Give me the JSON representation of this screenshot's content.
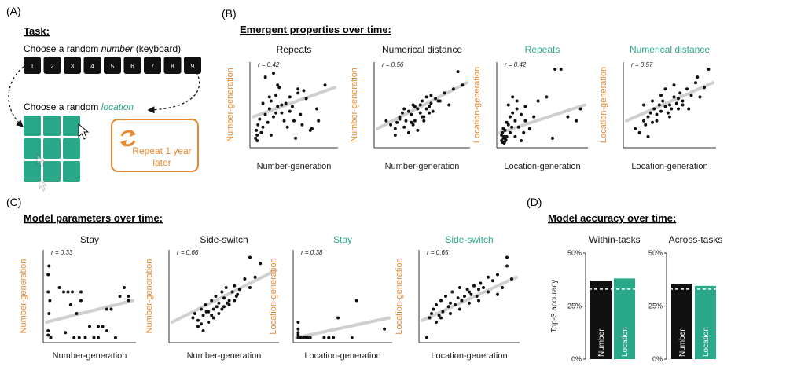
{
  "panels": {
    "a": "(A)",
    "b": "(B)",
    "c": "(C)",
    "d": "(D)"
  },
  "colors": {
    "orange": "#e8882e",
    "teal": "#2aa88a",
    "black": "#111111",
    "fit": "#cfcfcf"
  },
  "task": {
    "heading": "Task:",
    "number_prefix": "Choose a random ",
    "number_word": "number",
    "number_suffix": " (keyboard)",
    "keys": [
      "1",
      "2",
      "3",
      "4",
      "5",
      "6",
      "7",
      "8",
      "9"
    ],
    "location_prefix": "Choose a random ",
    "location_word": "location",
    "repeat_line1": "Repeat 1 year",
    "repeat_line2": "later",
    "repeat_icon": "cycle-arrows-icon"
  },
  "headings": {
    "b": "Emergent properties over time:",
    "c": "Model parameters over time:",
    "d": "Model accuracy over time:"
  },
  "chart_data": [
    {
      "id": "b1",
      "type": "scatter",
      "title": "Repeats",
      "title_color": "black",
      "xlabel": "Number-generation",
      "ylabel": "Number-generation",
      "ylabel_color": "orange",
      "r_label": "r = 0.42",
      "x": [
        0.03,
        0.05,
        0.04,
        0.06,
        0.08,
        0.1,
        0.05,
        0.12,
        0.15,
        0.18,
        0.2,
        0.22,
        0.25,
        0.28,
        0.3,
        0.32,
        0.35,
        0.4,
        0.45,
        0.5,
        0.55,
        0.6,
        0.15,
        0.25,
        0.35,
        0.45,
        0.55,
        0.65,
        0.7,
        0.2,
        0.3,
        0.38,
        0.48,
        0.58,
        0.12,
        0.22,
        0.42,
        0.52,
        0.62,
        0.72,
        0.78,
        0.88,
        0.8,
        0.28,
        0.1
      ],
      "y": [
        0.08,
        0.12,
        0.18,
        0.25,
        0.32,
        0.15,
        0.05,
        0.22,
        0.38,
        0.28,
        0.45,
        0.55,
        0.35,
        0.62,
        0.48,
        0.72,
        0.4,
        0.52,
        0.6,
        0.3,
        0.7,
        0.25,
        0.85,
        0.9,
        0.5,
        0.42,
        0.65,
        0.58,
        0.18,
        0.6,
        0.75,
        0.3,
        0.48,
        0.38,
        0.52,
        0.12,
        0.22,
        0.08,
        0.68,
        0.2,
        0.45,
        0.75,
        0.3,
        0.4,
        0.15
      ],
      "fit": [
        0.35,
        0.72
      ]
    },
    {
      "id": "b2",
      "type": "scatter",
      "title": "Numerical distance",
      "title_color": "black",
      "xlabel": "Number-generation",
      "ylabel": "Number-generation",
      "ylabel_color": "orange",
      "r_label": "r = 0.56",
      "x": [
        0.1,
        0.15,
        0.2,
        0.22,
        0.25,
        0.28,
        0.3,
        0.32,
        0.35,
        0.38,
        0.4,
        0.42,
        0.45,
        0.48,
        0.5,
        0.52,
        0.55,
        0.58,
        0.6,
        0.62,
        0.65,
        0.7,
        0.75,
        0.8,
        0.85,
        0.9,
        0.95,
        0.35,
        0.45,
        0.55,
        0.25,
        0.4,
        0.5,
        0.6,
        0.3,
        0.42,
        0.52,
        0.2,
        0.38,
        0.48,
        0.58,
        0.68
      ],
      "y": [
        0.3,
        0.25,
        0.2,
        0.28,
        0.35,
        0.4,
        0.22,
        0.3,
        0.42,
        0.38,
        0.5,
        0.3,
        0.45,
        0.4,
        0.55,
        0.35,
        0.6,
        0.48,
        0.52,
        0.42,
        0.58,
        0.55,
        0.65,
        0.5,
        0.7,
        0.92,
        0.75,
        0.15,
        0.18,
        0.45,
        0.32,
        0.25,
        0.35,
        0.62,
        0.45,
        0.48,
        0.3,
        0.12,
        0.28,
        0.5,
        0.4,
        0.55
      ],
      "fit": [
        0.2,
        0.78
      ]
    },
    {
      "id": "b3",
      "type": "scatter",
      "title": "Repeats",
      "title_color": "teal",
      "xlabel": "Location-generation",
      "ylabel": "Location-generation",
      "ylabel_color": "orange",
      "r_label": "r = 0.42",
      "x": [
        0.02,
        0.03,
        0.04,
        0.05,
        0.06,
        0.02,
        0.03,
        0.04,
        0.07,
        0.08,
        0.05,
        0.1,
        0.12,
        0.15,
        0.18,
        0.2,
        0.22,
        0.25,
        0.28,
        0.1,
        0.15,
        0.2,
        0.3,
        0.35,
        0.4,
        0.12,
        0.18,
        0.25,
        0.45,
        0.55,
        0.62,
        0.65,
        0.72,
        0.8,
        0.9,
        0.95,
        0.08,
        0.3,
        0.06,
        0.14
      ],
      "y": [
        0.05,
        0.03,
        0.08,
        0.1,
        0.04,
        0.12,
        0.15,
        0.2,
        0.06,
        0.1,
        0.02,
        0.25,
        0.35,
        0.4,
        0.3,
        0.45,
        0.22,
        0.38,
        0.15,
        0.5,
        0.6,
        0.55,
        0.3,
        0.2,
        0.35,
        0.15,
        0.1,
        0.05,
        0.55,
        0.6,
        0.08,
        0.95,
        0.95,
        0.35,
        0.3,
        0.45,
        0.28,
        0.48,
        0.18,
        0.22
      ],
      "fit": [
        0.15,
        0.5
      ]
    },
    {
      "id": "b4",
      "type": "scatter",
      "title": "Numerical distance",
      "title_color": "teal",
      "xlabel": "Location-generation",
      "ylabel": "Location-generation",
      "ylabel_color": "orange",
      "r_label": "r = 0.57",
      "x": [
        0.1,
        0.15,
        0.2,
        0.22,
        0.25,
        0.28,
        0.3,
        0.32,
        0.35,
        0.38,
        0.4,
        0.42,
        0.45,
        0.48,
        0.5,
        0.52,
        0.55,
        0.58,
        0.6,
        0.62,
        0.65,
        0.7,
        0.75,
        0.8,
        0.85,
        0.9,
        0.95,
        0.3,
        0.4,
        0.5,
        0.6,
        0.35,
        0.45,
        0.55,
        0.65,
        0.25,
        0.2,
        0.72,
        0.82
      ],
      "y": [
        0.2,
        0.15,
        0.3,
        0.25,
        0.35,
        0.4,
        0.28,
        0.45,
        0.38,
        0.5,
        0.42,
        0.55,
        0.48,
        0.4,
        0.5,
        0.45,
        0.6,
        0.52,
        0.58,
        0.65,
        0.55,
        0.7,
        0.62,
        0.78,
        0.6,
        0.72,
        0.95,
        0.55,
        0.62,
        0.35,
        0.45,
        0.3,
        0.7,
        0.75,
        0.5,
        0.1,
        0.5,
        0.45,
        0.85
      ],
      "fit": [
        0.3,
        0.78
      ]
    },
    {
      "id": "c1",
      "type": "scatter",
      "title": "Stay",
      "title_color": "black",
      "xlabel": "Number-generation",
      "ylabel": "Number-generation",
      "ylabel_color": "orange",
      "r_label": "r = 0.33",
      "x": [
        0.02,
        0.02,
        0.03,
        0.02,
        0.04,
        0.02,
        0.05,
        0.03,
        0.15,
        0.2,
        0.25,
        0.28,
        0.3,
        0.32,
        0.35,
        0.38,
        0.4,
        0.45,
        0.5,
        0.55,
        0.6,
        0.65,
        0.7,
        0.75,
        0.8,
        0.85,
        0.9,
        0.95,
        0.95,
        0.7,
        0.6,
        0.4,
        0.22
      ],
      "y": [
        0.05,
        0.1,
        0.3,
        0.55,
        0.45,
        0.75,
        0.02,
        0.85,
        0.6,
        0.55,
        0.55,
        0.4,
        0.55,
        0.02,
        0.3,
        0.02,
        0.55,
        0.02,
        0.15,
        0.02,
        0.02,
        0.15,
        0.35,
        0.35,
        0.02,
        0.5,
        0.6,
        0.5,
        0.45,
        0.1,
        0.15,
        0.45,
        0.08
      ],
      "fit": [
        0.2,
        0.45
      ]
    },
    {
      "id": "c2",
      "type": "scatter",
      "title": "Side-switch",
      "title_color": "black",
      "xlabel": "Number-generation",
      "ylabel": "Number-generation",
      "ylabel_color": "orange",
      "r_label": "r = 0.66",
      "x": [
        0.2,
        0.22,
        0.25,
        0.28,
        0.3,
        0.32,
        0.35,
        0.38,
        0.4,
        0.42,
        0.45,
        0.48,
        0.5,
        0.52,
        0.55,
        0.58,
        0.6,
        0.62,
        0.65,
        0.7,
        0.75,
        0.8,
        0.25,
        0.3,
        0.35,
        0.4,
        0.45,
        0.5,
        0.55,
        0.6,
        0.33,
        0.43,
        0.53,
        0.63,
        0.28,
        0.38,
        0.48,
        0.75,
        0.85
      ],
      "y": [
        0.25,
        0.3,
        0.22,
        0.35,
        0.28,
        0.4,
        0.32,
        0.45,
        0.35,
        0.5,
        0.42,
        0.55,
        0.48,
        0.6,
        0.45,
        0.55,
        0.62,
        0.5,
        0.58,
        0.7,
        0.6,
        0.72,
        0.15,
        0.1,
        0.2,
        0.25,
        0.3,
        0.38,
        0.4,
        0.45,
        0.32,
        0.38,
        0.42,
        0.52,
        0.18,
        0.28,
        0.35,
        0.95,
        0.88
      ],
      "fit": [
        0.2,
        0.8
      ]
    },
    {
      "id": "c3",
      "type": "scatter",
      "title": "Stay",
      "title_color": "teal",
      "xlabel": "Location-generation",
      "ylabel": "Location-generation",
      "ylabel_color": "orange",
      "r_label": "r = 0.38",
      "x": [
        0.02,
        0.02,
        0.02,
        0.02,
        0.02,
        0.03,
        0.05,
        0.08,
        0.1,
        0.12,
        0.15,
        0.3,
        0.35,
        0.4,
        0.45,
        0.6,
        0.65,
        0.95,
        0.35
      ],
      "y": [
        0.02,
        0.05,
        0.08,
        0.12,
        0.2,
        0.02,
        0.02,
        0.02,
        0.02,
        0.02,
        0.02,
        0.02,
        0.02,
        0.02,
        0.25,
        0.02,
        0.45,
        0.12,
        0.02
      ],
      "fit": [
        0.02,
        0.25
      ]
    },
    {
      "id": "c4",
      "type": "scatter",
      "title": "Side-switch",
      "title_color": "teal",
      "xlabel": "Location-generation",
      "ylabel": "Location-generation",
      "ylabel_color": "orange",
      "r_label": "r = 0.65",
      "x": [
        0.05,
        0.08,
        0.1,
        0.12,
        0.15,
        0.18,
        0.2,
        0.22,
        0.25,
        0.28,
        0.3,
        0.32,
        0.35,
        0.38,
        0.4,
        0.42,
        0.45,
        0.48,
        0.5,
        0.52,
        0.55,
        0.58,
        0.6,
        0.62,
        0.65,
        0.7,
        0.75,
        0.8,
        0.85,
        0.9,
        0.95,
        0.3,
        0.4,
        0.5,
        0.6,
        0.7,
        0.8,
        0.2,
        0.15,
        0.9
      ],
      "y": [
        0.02,
        0.25,
        0.3,
        0.35,
        0.4,
        0.28,
        0.45,
        0.32,
        0.5,
        0.38,
        0.42,
        0.55,
        0.4,
        0.48,
        0.6,
        0.45,
        0.5,
        0.58,
        0.55,
        0.52,
        0.62,
        0.5,
        0.58,
        0.65,
        0.6,
        0.72,
        0.68,
        0.75,
        0.6,
        0.85,
        0.7,
        0.3,
        0.35,
        0.42,
        0.45,
        0.55,
        0.52,
        0.25,
        0.2,
        0.95
      ],
      "fit": [
        0.22,
        0.72
      ]
    },
    {
      "id": "d1",
      "type": "bar",
      "title": "Within-tasks",
      "ylabel": "Top-3 accuracy",
      "ylim": [
        0,
        50
      ],
      "yticks": [
        "0%",
        "25%",
        "50%"
      ],
      "chance": 33,
      "categories": [
        "Number",
        "Location"
      ],
      "values": [
        37,
        38
      ]
    },
    {
      "id": "d2",
      "type": "bar",
      "title": "Across-tasks",
      "ylabel": "",
      "ylim": [
        0,
        50
      ],
      "yticks": [
        "0%",
        "25%",
        "50%"
      ],
      "chance": 33,
      "categories": [
        "Number",
        "Location"
      ],
      "values": [
        35.5,
        34.5
      ]
    }
  ]
}
